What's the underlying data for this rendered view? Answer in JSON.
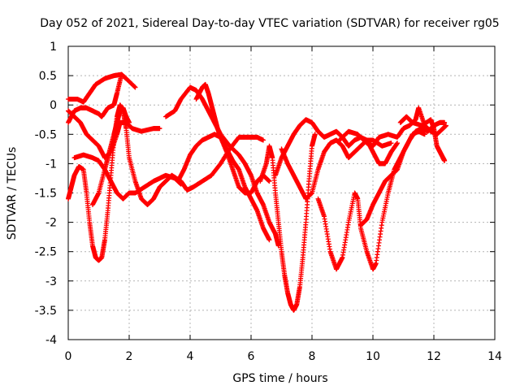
{
  "chart_data": {
    "type": "scatter",
    "title": "Day 052 of 2021, Sidereal Day-to-day VTEC variation (SDTVAR) for receiver rg05",
    "xlabel": "GPS time / hours",
    "ylabel": "SDTVAR / TECUs",
    "xlim": [
      0,
      14
    ],
    "ylim": [
      -4,
      1
    ],
    "xticks": [
      "0",
      "2",
      "4",
      "6",
      "8",
      "10",
      "12",
      "14"
    ],
    "yticks": [
      "1",
      "0.5",
      "0",
      "-0.5",
      "-1",
      "-1.5",
      "-2",
      "-2.5",
      "-3",
      "-3.5",
      "-4"
    ],
    "grid": true,
    "marker": "+",
    "color": "#ff0000",
    "series": [
      {
        "points": [
          [
            0.0,
            0.1
          ],
          [
            0.3,
            0.1
          ],
          [
            0.5,
            0.05
          ],
          [
            0.7,
            0.2
          ],
          [
            0.9,
            0.35
          ],
          [
            1.2,
            0.45
          ],
          [
            1.5,
            0.5
          ],
          [
            1.75,
            0.52
          ],
          [
            1.9,
            0.45
          ],
          [
            2.2,
            0.3
          ]
        ]
      },
      {
        "points": [
          [
            0.0,
            -0.3
          ],
          [
            0.2,
            -0.1
          ],
          [
            0.4,
            -0.05
          ],
          [
            0.6,
            -0.05
          ],
          [
            0.8,
            -0.1
          ],
          [
            1.0,
            -0.15
          ],
          [
            1.1,
            -0.2
          ],
          [
            1.3,
            -0.05
          ],
          [
            1.5,
            0.0
          ],
          [
            1.6,
            0.2
          ],
          [
            1.75,
            0.52
          ]
        ]
      },
      {
        "points": [
          [
            0.0,
            -0.1
          ],
          [
            0.2,
            -0.2
          ],
          [
            0.4,
            -0.3
          ],
          [
            0.6,
            -0.5
          ],
          [
            0.8,
            -0.6
          ],
          [
            1.0,
            -0.7
          ],
          [
            1.2,
            -0.9
          ],
          [
            1.4,
            -0.8
          ],
          [
            1.6,
            -0.5
          ],
          [
            1.7,
            -0.3
          ],
          [
            1.9,
            -0.3
          ],
          [
            2.1,
            -0.4
          ],
          [
            2.4,
            -0.45
          ],
          [
            2.8,
            -0.4
          ],
          [
            3.0,
            -0.4
          ]
        ]
      },
      {
        "points": [
          [
            0.0,
            -1.6
          ],
          [
            0.1,
            -1.4
          ],
          [
            0.2,
            -1.2
          ],
          [
            0.35,
            -1.05
          ],
          [
            0.5,
            -1.1
          ],
          [
            0.6,
            -1.5
          ],
          [
            0.7,
            -2.0
          ],
          [
            0.8,
            -2.4
          ],
          [
            0.9,
            -2.6
          ],
          [
            1.0,
            -2.65
          ],
          [
            1.1,
            -2.6
          ],
          [
            1.2,
            -2.3
          ],
          [
            1.3,
            -1.8
          ],
          [
            1.4,
            -1.2
          ],
          [
            1.5,
            -0.6
          ],
          [
            1.6,
            -0.2
          ],
          [
            1.7,
            0.0
          ],
          [
            1.8,
            -0.1
          ],
          [
            1.9,
            -0.4
          ],
          [
            2.0,
            -0.9
          ],
          [
            2.2,
            -1.3
          ],
          [
            2.4,
            -1.6
          ],
          [
            2.6,
            -1.7
          ],
          [
            2.8,
            -1.6
          ],
          [
            3.0,
            -1.4
          ],
          [
            3.2,
            -1.3
          ],
          [
            3.4,
            -1.2
          ]
        ]
      },
      {
        "points": [
          [
            0.2,
            -0.9
          ],
          [
            0.5,
            -0.85
          ],
          [
            0.8,
            -0.9
          ],
          [
            1.0,
            -0.95
          ],
          [
            1.2,
            -1.1
          ],
          [
            1.4,
            -1.3
          ],
          [
            1.6,
            -1.5
          ],
          [
            1.8,
            -1.6
          ],
          [
            2.0,
            -1.5
          ],
          [
            2.2,
            -1.5
          ],
          [
            2.5,
            -1.4
          ],
          [
            2.8,
            -1.3
          ],
          [
            3.0,
            -1.25
          ],
          [
            3.2,
            -1.2
          ],
          [
            3.5,
            -1.25
          ],
          [
            3.7,
            -1.35
          ]
        ]
      },
      {
        "points": [
          [
            0.8,
            -1.7
          ],
          [
            1.0,
            -1.5
          ],
          [
            1.2,
            -1.1
          ],
          [
            1.35,
            -0.8
          ],
          [
            1.5,
            -0.5
          ],
          [
            1.6,
            -0.3
          ],
          [
            1.7,
            -0.1
          ],
          [
            1.8,
            -0.05
          ],
          [
            1.9,
            -0.2
          ],
          [
            2.0,
            -0.3
          ]
        ]
      },
      {
        "points": [
          [
            3.2,
            -0.2
          ],
          [
            3.5,
            -0.1
          ],
          [
            3.7,
            0.1
          ],
          [
            4.0,
            0.3
          ],
          [
            4.2,
            0.25
          ],
          [
            4.4,
            0.1
          ],
          [
            4.6,
            -0.1
          ],
          [
            4.8,
            -0.3
          ],
          [
            5.0,
            -0.5
          ],
          [
            5.3,
            -0.7
          ],
          [
            5.6,
            -0.85
          ],
          [
            5.8,
            -1.0
          ],
          [
            6.0,
            -1.2
          ],
          [
            6.2,
            -1.5
          ],
          [
            6.4,
            -1.7
          ],
          [
            6.6,
            -2.0
          ],
          [
            6.8,
            -2.2
          ],
          [
            6.9,
            -2.4
          ]
        ]
      },
      {
        "points": [
          [
            4.2,
            0.1
          ],
          [
            4.4,
            0.3
          ],
          [
            4.5,
            0.35
          ],
          [
            4.6,
            0.2
          ],
          [
            4.7,
            0.0
          ],
          [
            4.8,
            -0.2
          ],
          [
            4.9,
            -0.4
          ],
          [
            5.0,
            -0.55
          ],
          [
            5.2,
            -0.75
          ],
          [
            5.4,
            -0.95
          ],
          [
            5.6,
            -1.1
          ],
          [
            5.8,
            -1.4
          ],
          [
            6.0,
            -1.6
          ],
          [
            6.2,
            -1.8
          ],
          [
            6.4,
            -2.1
          ],
          [
            6.6,
            -2.3
          ]
        ]
      },
      {
        "points": [
          [
            3.4,
            -1.2
          ],
          [
            3.7,
            -1.3
          ],
          [
            3.9,
            -1.45
          ],
          [
            4.1,
            -1.4
          ],
          [
            4.4,
            -1.3
          ],
          [
            4.7,
            -1.2
          ],
          [
            5.0,
            -1.0
          ],
          [
            5.3,
            -0.75
          ],
          [
            5.6,
            -0.55
          ],
          [
            5.9,
            -0.55
          ],
          [
            6.2,
            -0.55
          ],
          [
            6.4,
            -0.6
          ]
        ]
      },
      {
        "points": [
          [
            3.6,
            -1.3
          ],
          [
            3.8,
            -1.1
          ],
          [
            4.0,
            -0.85
          ],
          [
            4.2,
            -0.7
          ],
          [
            4.4,
            -0.6
          ],
          [
            4.6,
            -0.55
          ],
          [
            4.8,
            -0.5
          ],
          [
            5.0,
            -0.55
          ],
          [
            5.2,
            -0.8
          ],
          [
            5.4,
            -1.1
          ],
          [
            5.6,
            -1.4
          ],
          [
            5.8,
            -1.5
          ],
          [
            6.0,
            -1.5
          ],
          [
            6.2,
            -1.3
          ],
          [
            6.4,
            -1.2
          ],
          [
            6.6,
            -1.3
          ]
        ]
      },
      {
        "points": [
          [
            6.3,
            -1.3
          ],
          [
            6.5,
            -1.0
          ],
          [
            6.6,
            -0.7
          ],
          [
            6.7,
            -0.9
          ],
          [
            6.8,
            -1.5
          ],
          [
            6.9,
            -2.0
          ],
          [
            7.0,
            -2.5
          ],
          [
            7.1,
            -2.9
          ],
          [
            7.2,
            -3.2
          ],
          [
            7.3,
            -3.4
          ],
          [
            7.4,
            -3.5
          ],
          [
            7.5,
            -3.4
          ],
          [
            7.6,
            -3.1
          ],
          [
            7.7,
            -2.6
          ],
          [
            7.8,
            -2.0
          ],
          [
            7.9,
            -1.3
          ],
          [
            8.0,
            -0.7
          ],
          [
            8.1,
            -0.5
          ]
        ]
      },
      {
        "points": [
          [
            6.8,
            -1.2
          ],
          [
            7.0,
            -0.9
          ],
          [
            7.2,
            -0.7
          ],
          [
            7.4,
            -0.5
          ],
          [
            7.6,
            -0.35
          ],
          [
            7.8,
            -0.25
          ],
          [
            8.0,
            -0.3
          ],
          [
            8.2,
            -0.45
          ],
          [
            8.4,
            -0.55
          ],
          [
            8.6,
            -0.5
          ],
          [
            8.8,
            -0.45
          ],
          [
            9.0,
            -0.55
          ],
          [
            9.2,
            -0.7
          ],
          [
            9.4,
            -0.6
          ],
          [
            9.6,
            -0.55
          ],
          [
            9.8,
            -0.6
          ],
          [
            10.0,
            -0.8
          ],
          [
            10.2,
            -1.0
          ],
          [
            10.4,
            -1.0
          ],
          [
            10.6,
            -0.8
          ],
          [
            10.8,
            -0.65
          ]
        ]
      },
      {
        "points": [
          [
            7.0,
            -0.75
          ],
          [
            7.2,
            -1.0
          ],
          [
            7.4,
            -1.2
          ],
          [
            7.6,
            -1.4
          ],
          [
            7.8,
            -1.6
          ],
          [
            8.0,
            -1.5
          ],
          [
            8.2,
            -1.1
          ],
          [
            8.4,
            -0.8
          ],
          [
            8.6,
            -0.65
          ],
          [
            8.8,
            -0.6
          ],
          [
            9.0,
            -0.7
          ],
          [
            9.2,
            -0.9
          ],
          [
            9.4,
            -0.8
          ],
          [
            9.6,
            -0.7
          ],
          [
            9.8,
            -0.6
          ],
          [
            10.0,
            -0.6
          ],
          [
            10.3,
            -0.7
          ],
          [
            10.6,
            -0.65
          ]
        ]
      },
      {
        "points": [
          [
            8.2,
            -1.6
          ],
          [
            8.4,
            -1.9
          ],
          [
            8.6,
            -2.5
          ],
          [
            8.8,
            -2.8
          ],
          [
            9.0,
            -2.6
          ],
          [
            9.2,
            -2.0
          ],
          [
            9.4,
            -1.5
          ],
          [
            9.5,
            -1.6
          ],
          [
            9.6,
            -2.1
          ],
          [
            9.8,
            -2.5
          ],
          [
            10.0,
            -2.8
          ],
          [
            10.1,
            -2.7
          ],
          [
            10.3,
            -2.0
          ],
          [
            10.5,
            -1.5
          ],
          [
            10.7,
            -1.1
          ],
          [
            10.9,
            -0.9
          ],
          [
            11.1,
            -0.7
          ],
          [
            11.3,
            -0.5
          ],
          [
            11.5,
            -0.45
          ],
          [
            11.7,
            -0.5
          ]
        ]
      },
      {
        "points": [
          [
            8.9,
            -0.6
          ],
          [
            9.2,
            -0.45
          ],
          [
            9.5,
            -0.5
          ],
          [
            9.8,
            -0.65
          ],
          [
            10.0,
            -0.7
          ],
          [
            10.2,
            -0.55
          ],
          [
            10.5,
            -0.5
          ],
          [
            10.8,
            -0.55
          ],
          [
            11.0,
            -0.4
          ],
          [
            11.2,
            -0.35
          ],
          [
            11.4,
            -0.25
          ],
          [
            11.5,
            -0.05
          ],
          [
            11.7,
            -0.35
          ],
          [
            11.9,
            -0.45
          ],
          [
            12.1,
            -0.5
          ],
          [
            12.3,
            -0.4
          ],
          [
            12.4,
            -0.35
          ]
        ]
      },
      {
        "points": [
          [
            10.9,
            -0.3
          ],
          [
            11.1,
            -0.2
          ],
          [
            11.3,
            -0.3
          ],
          [
            11.6,
            -0.35
          ],
          [
            11.9,
            -0.25
          ],
          [
            12.0,
            -0.4
          ],
          [
            12.1,
            -0.7
          ],
          [
            12.2,
            -0.8
          ],
          [
            12.3,
            -0.9
          ],
          [
            12.35,
            -0.95
          ]
        ]
      },
      {
        "points": [
          [
            9.6,
            -2.05
          ],
          [
            9.8,
            -1.95
          ],
          [
            10.0,
            -1.7
          ],
          [
            10.2,
            -1.5
          ],
          [
            10.4,
            -1.3
          ],
          [
            10.6,
            -1.2
          ],
          [
            10.8,
            -1.1
          ],
          [
            11.0,
            -0.8
          ],
          [
            11.2,
            -0.6
          ],
          [
            11.4,
            -0.45
          ],
          [
            11.6,
            -0.4
          ],
          [
            11.8,
            -0.45
          ],
          [
            12.0,
            -0.35
          ],
          [
            12.2,
            -0.3
          ],
          [
            12.35,
            -0.3
          ]
        ]
      }
    ]
  }
}
